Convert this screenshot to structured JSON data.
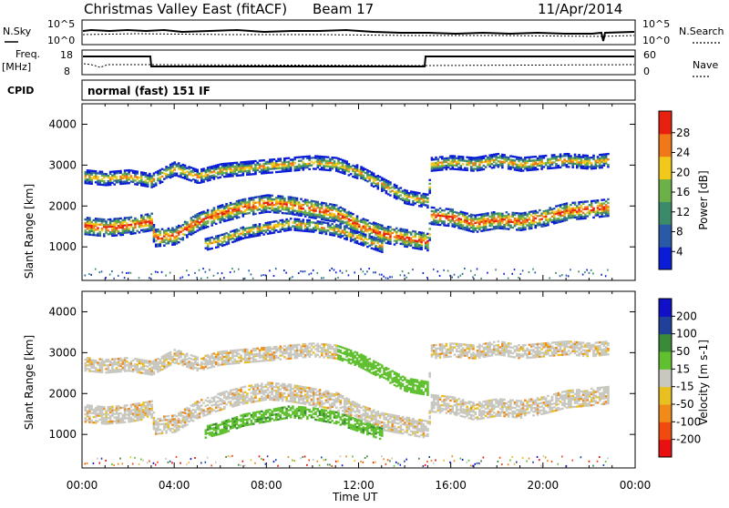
{
  "header": {
    "station": "Christmas Valley East (fitACF)",
    "beam": "Beam 17",
    "date": "11/Apr/2014"
  },
  "noise_panel": {
    "left_label": "N.Sky",
    "right_label": "N.Search",
    "left_ticks": [
      "10^5",
      "10^0"
    ],
    "right_ticks": [
      "10^5",
      "10^0"
    ]
  },
  "freq_panel": {
    "left_label": "Freq.",
    "left_unit": "[MHz]",
    "right_label": "Nave",
    "left_ticks": [
      "18",
      "8"
    ],
    "right_ticks": [
      "60",
      "0"
    ]
  },
  "cpid_panel": {
    "label": "CPID",
    "program": "normal (fast) 151 IF"
  },
  "chart_data": [
    {
      "type": "heatmap",
      "title": "Power",
      "ylabel": "Slant Range [km]",
      "xlabel": "",
      "ylim": [
        180,
        4500
      ],
      "yticks": [
        1000,
        2000,
        3000,
        4000
      ],
      "colorbar_label": "Power [dB]",
      "colorbar_ticks": [
        "28",
        "24",
        "20",
        "16",
        "12",
        "8",
        "4"
      ],
      "colorbar_range": [
        0,
        30
      ],
      "colorbar_colors": [
        "#0a1cd8",
        "#2a5aa6",
        "#3b8a6a",
        "#6cb04a",
        "#f2c81a",
        "#f07818",
        "#e82010"
      ],
      "bands": [
        {
          "name": "lower",
          "points": [
            [
              0.1,
              1500
            ],
            [
              1,
              1450
            ],
            [
              2,
              1500
            ],
            [
              3.0,
              1600
            ],
            [
              3.1,
              1200
            ],
            [
              4,
              1250
            ],
            [
              5,
              1600
            ],
            [
              6,
              1800
            ],
            [
              7,
              1950
            ],
            [
              8,
              2050
            ],
            [
              9,
              2000
            ],
            [
              10,
              1900
            ],
            [
              11,
              1800
            ],
            [
              12,
              1500
            ],
            [
              13,
              1300
            ],
            [
              14,
              1200
            ],
            [
              15,
              1100
            ],
            [
              15.1,
              1750
            ],
            [
              16,
              1700
            ],
            [
              17,
              1550
            ],
            [
              18,
              1650
            ],
            [
              19,
              1600
            ],
            [
              20,
              1700
            ],
            [
              21,
              1850
            ],
            [
              22,
              1900
            ],
            [
              22.8,
              1950
            ]
          ]
        },
        {
          "name": "upper",
          "points": [
            [
              0.1,
              2700
            ],
            [
              1,
              2650
            ],
            [
              2,
              2700
            ],
            [
              3,
              2600
            ],
            [
              4,
              2900
            ],
            [
              5,
              2700
            ],
            [
              6,
              2850
            ],
            [
              7,
              2900
            ],
            [
              8,
              2950
            ],
            [
              9,
              3000
            ],
            [
              10,
              3050
            ],
            [
              11,
              3000
            ],
            [
              12,
              2800
            ],
            [
              13,
              2500
            ],
            [
              14,
              2200
            ],
            [
              15,
              2100
            ],
            [
              15.1,
              3000
            ],
            [
              16,
              3050
            ],
            [
              17,
              3000
            ],
            [
              18,
              3100
            ],
            [
              19,
              3000
            ],
            [
              20,
              3050
            ],
            [
              21,
              3100
            ],
            [
              22,
              3050
            ],
            [
              22.8,
              3100
            ]
          ]
        },
        {
          "name": "midpatch",
          "points": [
            [
              5.3,
              1050
            ],
            [
              6,
              1150
            ],
            [
              7,
              1350
            ],
            [
              8,
              1450
            ],
            [
              9,
              1550
            ],
            [
              10,
              1500
            ],
            [
              11,
              1400
            ],
            [
              12,
              1200
            ],
            [
              13,
              1000
            ]
          ]
        }
      ]
    },
    {
      "type": "heatmap",
      "title": "Velocity",
      "ylabel": "Slant Range [km]",
      "xlabel": "Time UT",
      "ylim": [
        180,
        4500
      ],
      "yticks": [
        1000,
        2000,
        3000,
        4000
      ],
      "colorbar_label": "Velocity [m s-1]",
      "colorbar_ticks": [
        "200",
        "100",
        "50",
        "15",
        "-15",
        "-50",
        "-100",
        "-200"
      ],
      "colorbar_range": [
        -250,
        250
      ],
      "colorbar_colors": [
        "#e81010",
        "#f04a10",
        "#f08a18",
        "#e8c020",
        "#c8c8c0",
        "#60c030",
        "#3a8a3a",
        "#20409a",
        "#1010c8"
      ],
      "x_ticks": [
        "00:00",
        "04:00",
        "08:00",
        "12:00",
        "16:00",
        "20:00",
        "00:00"
      ]
    }
  ]
}
